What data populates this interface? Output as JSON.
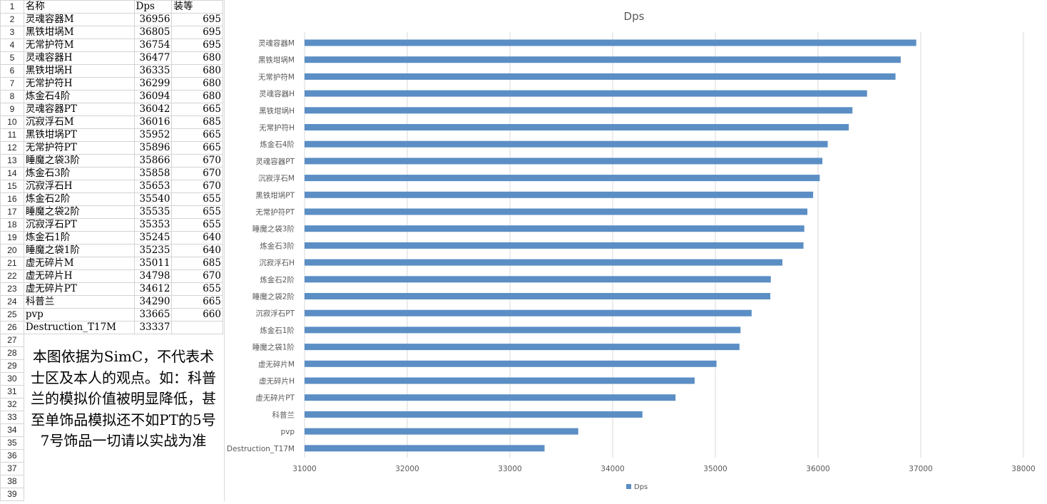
{
  "sheet": {
    "row_numbers": [
      "1",
      "2",
      "3",
      "4",
      "5",
      "6",
      "7",
      "8",
      "9",
      "10",
      "11",
      "12",
      "13",
      "14",
      "15",
      "16",
      "17",
      "18",
      "19",
      "20",
      "21",
      "22",
      "23",
      "24",
      "25",
      "26",
      "27",
      "28",
      "29",
      "30",
      "31",
      "32",
      "33",
      "34",
      "35",
      "36",
      "37",
      "38",
      "39"
    ],
    "headers": {
      "name": "名称",
      "dps": "Dps",
      "ilvl": "装等"
    },
    "rows": [
      {
        "name": "灵魂容器M",
        "dps": "36956",
        "ilvl": "695"
      },
      {
        "name": "黑铁坩埚M",
        "dps": "36805",
        "ilvl": "695"
      },
      {
        "name": "无常护符M",
        "dps": "36754",
        "ilvl": "695"
      },
      {
        "name": "灵魂容器H",
        "dps": "36477",
        "ilvl": "680"
      },
      {
        "name": "黑铁坩埚H",
        "dps": "36335",
        "ilvl": "680"
      },
      {
        "name": "无常护符H",
        "dps": "36299",
        "ilvl": "680"
      },
      {
        "name": "炼金石4阶",
        "dps": "36094",
        "ilvl": "680"
      },
      {
        "name": "灵魂容器PT",
        "dps": "36042",
        "ilvl": "665"
      },
      {
        "name": "沉寂浮石M",
        "dps": "36016",
        "ilvl": "685"
      },
      {
        "name": "黑铁坩埚PT",
        "dps": "35952",
        "ilvl": "665"
      },
      {
        "name": "无常护符PT",
        "dps": "35896",
        "ilvl": "665"
      },
      {
        "name": "睡魔之袋3阶",
        "dps": "35866",
        "ilvl": "670"
      },
      {
        "name": "炼金石3阶",
        "dps": "35858",
        "ilvl": "670"
      },
      {
        "name": "沉寂浮石H",
        "dps": "35653",
        "ilvl": "670"
      },
      {
        "name": "炼金石2阶",
        "dps": "35540",
        "ilvl": "655"
      },
      {
        "name": "睡魔之袋2阶",
        "dps": "35535",
        "ilvl": "655"
      },
      {
        "name": "沉寂浮石PT",
        "dps": "35353",
        "ilvl": "655"
      },
      {
        "name": "炼金石1阶",
        "dps": "35245",
        "ilvl": "640"
      },
      {
        "name": "睡魔之袋1阶",
        "dps": "35235",
        "ilvl": "640"
      },
      {
        "name": "虚无碎片M",
        "dps": "35011",
        "ilvl": "685"
      },
      {
        "name": "虚无碎片H",
        "dps": "34798",
        "ilvl": "670"
      },
      {
        "name": "虚无碎片PT",
        "dps": "34612",
        "ilvl": "655"
      },
      {
        "name": "科普兰",
        "dps": "34290",
        "ilvl": "665"
      },
      {
        "name": "pvp",
        "dps": "33665",
        "ilvl": "660"
      },
      {
        "name": "Destruction_T17M",
        "dps": "33337",
        "ilvl": ""
      }
    ],
    "note": "本图依据为SimC，不代表术士区及本人的观点。如：科普兰的模拟价值被明显降低，甚至单饰品模拟还不如PT的5号7号饰品一切请以实战为准"
  },
  "chart_data": {
    "type": "bar",
    "orientation": "horizontal",
    "title": "Dps",
    "categories": [
      "灵魂容器M",
      "黑铁坩埚M",
      "无常护符M",
      "灵魂容器H",
      "黑铁坩埚H",
      "无常护符H",
      "炼金石4阶",
      "灵魂容器PT",
      "沉寂浮石M",
      "黑铁坩埚PT",
      "无常护符PT",
      "睡魔之袋3阶",
      "炼金石3阶",
      "沉寂浮石H",
      "炼金石2阶",
      "睡魔之袋2阶",
      "沉寂浮石PT",
      "炼金石1阶",
      "睡魔之袋1阶",
      "虚无碎片M",
      "虚无碎片H",
      "虚无碎片PT",
      "科普兰",
      "pvp",
      "Destruction_T17M"
    ],
    "series": [
      {
        "name": "Dps",
        "values": [
          36956,
          36805,
          36754,
          36477,
          36335,
          36299,
          36094,
          36042,
          36016,
          35952,
          35896,
          35866,
          35858,
          35653,
          35540,
          35535,
          35353,
          35245,
          35235,
          35011,
          34798,
          34612,
          34290,
          33665,
          33337
        ]
      }
    ],
    "xlim": [
      31000,
      38000
    ],
    "xticks": [
      "31000",
      "32000",
      "33000",
      "34000",
      "35000",
      "36000",
      "37000",
      "38000"
    ],
    "grid": true,
    "legend": "bottom",
    "color": "#5b8ec4"
  }
}
